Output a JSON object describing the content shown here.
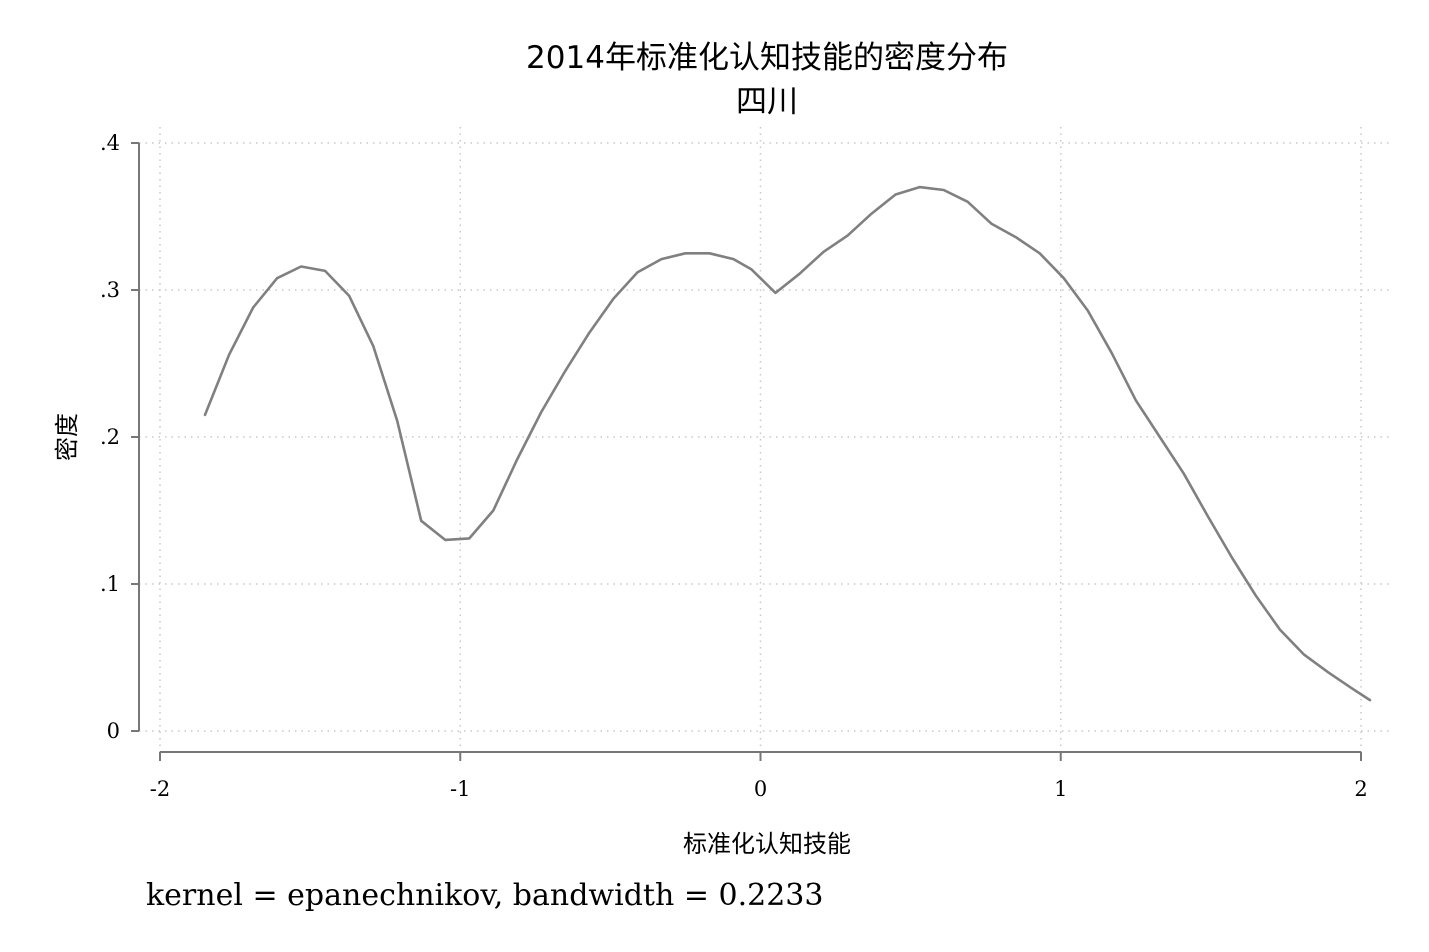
{
  "chart_data": {
    "type": "line",
    "title": "2014年标准化认知技能的密度分布",
    "subtitle": "四川",
    "xlabel": "标准化认知技能",
    "ylabel": "密度",
    "note": "kernel = epanechnikov, bandwidth = 0.2233",
    "xlim": [
      -2,
      2
    ],
    "ylim": [
      0,
      0.4
    ],
    "x_ticks": [
      -2,
      -1,
      0,
      1,
      2
    ],
    "x_tick_labels": [
      "-2",
      "-1",
      "0",
      "1",
      "2"
    ],
    "y_ticks": [
      0,
      0.1,
      0.2,
      0.3,
      0.4
    ],
    "y_tick_labels": [
      "0",
      ".1",
      ".2",
      ".3",
      ".4"
    ],
    "grid": true,
    "line_color": "#808080",
    "series": [
      {
        "x": [
          -1.85,
          -1.77,
          -1.69,
          -1.61,
          -1.53,
          -1.45,
          -1.37,
          -1.29,
          -1.21,
          -1.13,
          -1.05,
          -0.97,
          -0.89,
          -0.81,
          -0.73,
          -0.65,
          -0.57,
          -0.49,
          -0.41,
          -0.33,
          -0.25,
          -0.17,
          -0.09,
          -0.03,
          0.05,
          0.13,
          0.21,
          0.29,
          0.37,
          0.45,
          0.53,
          0.61,
          0.69,
          0.77,
          0.85,
          0.93,
          1.01,
          1.09,
          1.17,
          1.25,
          1.33,
          1.41,
          1.49,
          1.57,
          1.65,
          1.73,
          1.81,
          1.89,
          1.97,
          2.03
        ],
        "y": [
          0.215,
          0.256,
          0.288,
          0.308,
          0.316,
          0.313,
          0.296,
          0.262,
          0.211,
          0.143,
          0.13,
          0.131,
          0.15,
          0.185,
          0.217,
          0.245,
          0.271,
          0.294,
          0.312,
          0.321,
          0.325,
          0.325,
          0.321,
          0.314,
          0.298,
          0.311,
          0.326,
          0.337,
          0.352,
          0.365,
          0.37,
          0.368,
          0.36,
          0.345,
          0.336,
          0.325,
          0.308,
          0.286,
          0.257,
          0.225,
          0.2,
          0.175,
          0.146,
          0.118,
          0.092,
          0.069,
          0.052,
          0.04,
          0.029,
          0.021
        ]
      }
    ]
  }
}
